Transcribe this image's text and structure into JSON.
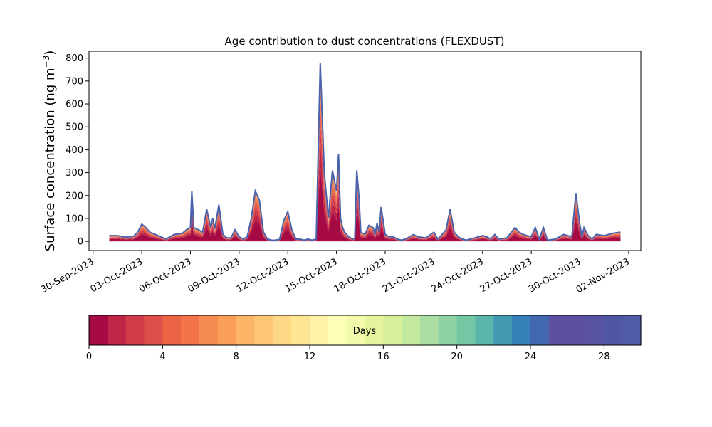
{
  "chart_data": {
    "type": "area",
    "title": "Age contribution to dust concentrations (FLEXDUST)",
    "ylabel": "Surface concentration (ng m",
    "ylabel_exp": "−3",
    "ylabel_close": ")",
    "xlabel": "",
    "ylim": [
      -40,
      830
    ],
    "yticks": [
      0,
      100,
      200,
      300,
      400,
      500,
      600,
      700,
      800
    ],
    "xlim": [
      "2023-09-29T18:00",
      "2023-11-02T18:00"
    ],
    "xticks": [
      "2023-09-30",
      "2023-10-03",
      "2023-10-06",
      "2023-10-09",
      "2023-10-12",
      "2023-10-15",
      "2023-10-18",
      "2023-10-21",
      "2023-10-24",
      "2023-10-27",
      "2023-10-30",
      "2023-11-02"
    ],
    "xtick_labels": [
      "30-Sep-2023",
      "03-Oct-2023",
      "06-Oct-2023",
      "09-Oct-2023",
      "12-Oct-2023",
      "15-Oct-2023",
      "18-Oct-2023",
      "21-Oct-2023",
      "24-Oct-2023",
      "27-Oct-2023",
      "30-Oct-2023",
      "02-Nov-2023"
    ],
    "grid": false,
    "stacked_by": "age (days)",
    "total_series": {
      "x": [
        "2023-10-01T00:00",
        "2023-10-01T12:00",
        "2023-10-02T00:00",
        "2023-10-02T12:00",
        "2023-10-02T18:00",
        "2023-10-03T00:00",
        "2023-10-03T06:00",
        "2023-10-03T12:00",
        "2023-10-04T00:00",
        "2023-10-04T12:00",
        "2023-10-05T00:00",
        "2023-10-05T12:00",
        "2023-10-05T18:00",
        "2023-10-06T00:00",
        "2023-10-06T02:00",
        "2023-10-06T05:00",
        "2023-10-06T08:00",
        "2023-10-06T12:00",
        "2023-10-06T18:00",
        "2023-10-07T00:00",
        "2023-10-07T06:00",
        "2023-10-07T09:00",
        "2023-10-07T12:00",
        "2023-10-07T18:00",
        "2023-10-08T00:00",
        "2023-10-08T06:00",
        "2023-10-08T12:00",
        "2023-10-08T18:00",
        "2023-10-09T00:00",
        "2023-10-09T06:00",
        "2023-10-09T12:00",
        "2023-10-09T18:00",
        "2023-10-10T00:00",
        "2023-10-10T06:00",
        "2023-10-10T12:00",
        "2023-10-10T18:00",
        "2023-10-11T00:00",
        "2023-10-11T06:00",
        "2023-10-11T12:00",
        "2023-10-11T18:00",
        "2023-10-12T00:00",
        "2023-10-12T06:00",
        "2023-10-12T12:00",
        "2023-10-12T18:00",
        "2023-10-13T00:00",
        "2023-10-13T06:00",
        "2023-10-13T12:00",
        "2023-10-13T18:00",
        "2023-10-14T00:00",
        "2023-10-14T06:00",
        "2023-10-14T12:00",
        "2023-10-14T18:00",
        "2023-10-15T00:00",
        "2023-10-15T03:00",
        "2023-10-15T06:00",
        "2023-10-15T09:00",
        "2023-10-15T12:00",
        "2023-10-15T18:00",
        "2023-10-16T00:00",
        "2023-10-16T03:00",
        "2023-10-16T06:00",
        "2023-10-16T09:00",
        "2023-10-16T12:00",
        "2023-10-16T18:00",
        "2023-10-17T00:00",
        "2023-10-17T06:00",
        "2023-10-17T09:00",
        "2023-10-17T12:00",
        "2023-10-17T15:00",
        "2023-10-17T18:00",
        "2023-10-18T00:00",
        "2023-10-18T06:00",
        "2023-10-18T12:00",
        "2023-10-18T18:00",
        "2023-10-19T00:00",
        "2023-10-19T06:00",
        "2023-10-19T12:00",
        "2023-10-19T18:00",
        "2023-10-20T00:00",
        "2023-10-20T12:00",
        "2023-10-21T00:00",
        "2023-10-21T06:00",
        "2023-10-21T12:00",
        "2023-10-21T18:00",
        "2023-10-22T00:00",
        "2023-10-22T06:00",
        "2023-10-22T12:00",
        "2023-10-22T18:00",
        "2023-10-23T00:00",
        "2023-10-23T12:00",
        "2023-10-24T00:00",
        "2023-10-24T06:00",
        "2023-10-24T12:00",
        "2023-10-24T18:00",
        "2023-10-25T00:00",
        "2023-10-25T12:00",
        "2023-10-26T00:00",
        "2023-10-26T06:00",
        "2023-10-26T12:00",
        "2023-10-27T00:00",
        "2023-10-27T06:00",
        "2023-10-27T12:00",
        "2023-10-27T18:00",
        "2023-10-28T00:00",
        "2023-10-28T12:00",
        "2023-10-29T00:00",
        "2023-10-29T12:00",
        "2023-10-29T18:00",
        "2023-10-30T00:00",
        "2023-10-30T03:00",
        "2023-10-30T06:00",
        "2023-10-30T12:00",
        "2023-10-30T18:00",
        "2023-10-31T00:00",
        "2023-10-31T12:00",
        "2023-11-01T00:00",
        "2023-11-01T12:00"
      ],
      "values": [
        25,
        25,
        18,
        22,
        40,
        75,
        60,
        40,
        25,
        10,
        30,
        35,
        50,
        60,
        220,
        60,
        55,
        50,
        40,
        140,
        60,
        100,
        55,
        160,
        30,
        15,
        15,
        50,
        20,
        10,
        20,
        100,
        220,
        180,
        40,
        10,
        5,
        5,
        10,
        90,
        130,
        50,
        10,
        10,
        5,
        10,
        5,
        10,
        780,
        300,
        100,
        310,
        220,
        380,
        100,
        60,
        40,
        20,
        10,
        15,
        310,
        200,
        40,
        30,
        70,
        60,
        30,
        80,
        40,
        150,
        30,
        20,
        20,
        10,
        5,
        10,
        20,
        30,
        20,
        15,
        40,
        10,
        30,
        50,
        140,
        40,
        20,
        10,
        5,
        15,
        25,
        20,
        10,
        30,
        10,
        15,
        60,
        40,
        30,
        20,
        60,
        10,
        60,
        5,
        10,
        30,
        20,
        210,
        70,
        20,
        60,
        25,
        10,
        30,
        25,
        35,
        40
      ]
    },
    "age_bands_days": [
      0,
      1,
      2,
      3,
      4,
      5,
      6,
      7,
      8,
      9,
      10,
      11,
      12,
      13,
      14,
      15,
      16,
      17,
      18,
      19,
      20,
      21,
      22,
      23,
      24,
      25,
      26,
      27,
      28,
      29,
      30
    ],
    "colorbar": {
      "label": "Days",
      "min": 0,
      "max": 30,
      "ticks": [
        0,
        4,
        8,
        12,
        16,
        20,
        24,
        28
      ],
      "colors": [
        "#a50a45",
        "#be2546",
        "#d13c4b",
        "#de4f4a",
        "#ea6345",
        "#f3744a",
        "#f68b50",
        "#fa9e5c",
        "#fdb567",
        "#fec676",
        "#fed885",
        "#fee593",
        "#fff2a6",
        "#fcffb7",
        "#f3faab",
        "#e6f59d",
        "#d7ef9b",
        "#c3e8a0",
        "#a9dda2",
        "#8dd2a4",
        "#74c7a5",
        "#5cb5aa",
        "#459ab3",
        "#3681b9",
        "#4268b0",
        "#5e4fa2",
        "#5b50a2",
        "#5853a3",
        "#4f57a5",
        "#4e5ba6"
      ]
    },
    "top_line_color": "#4a62ac"
  }
}
